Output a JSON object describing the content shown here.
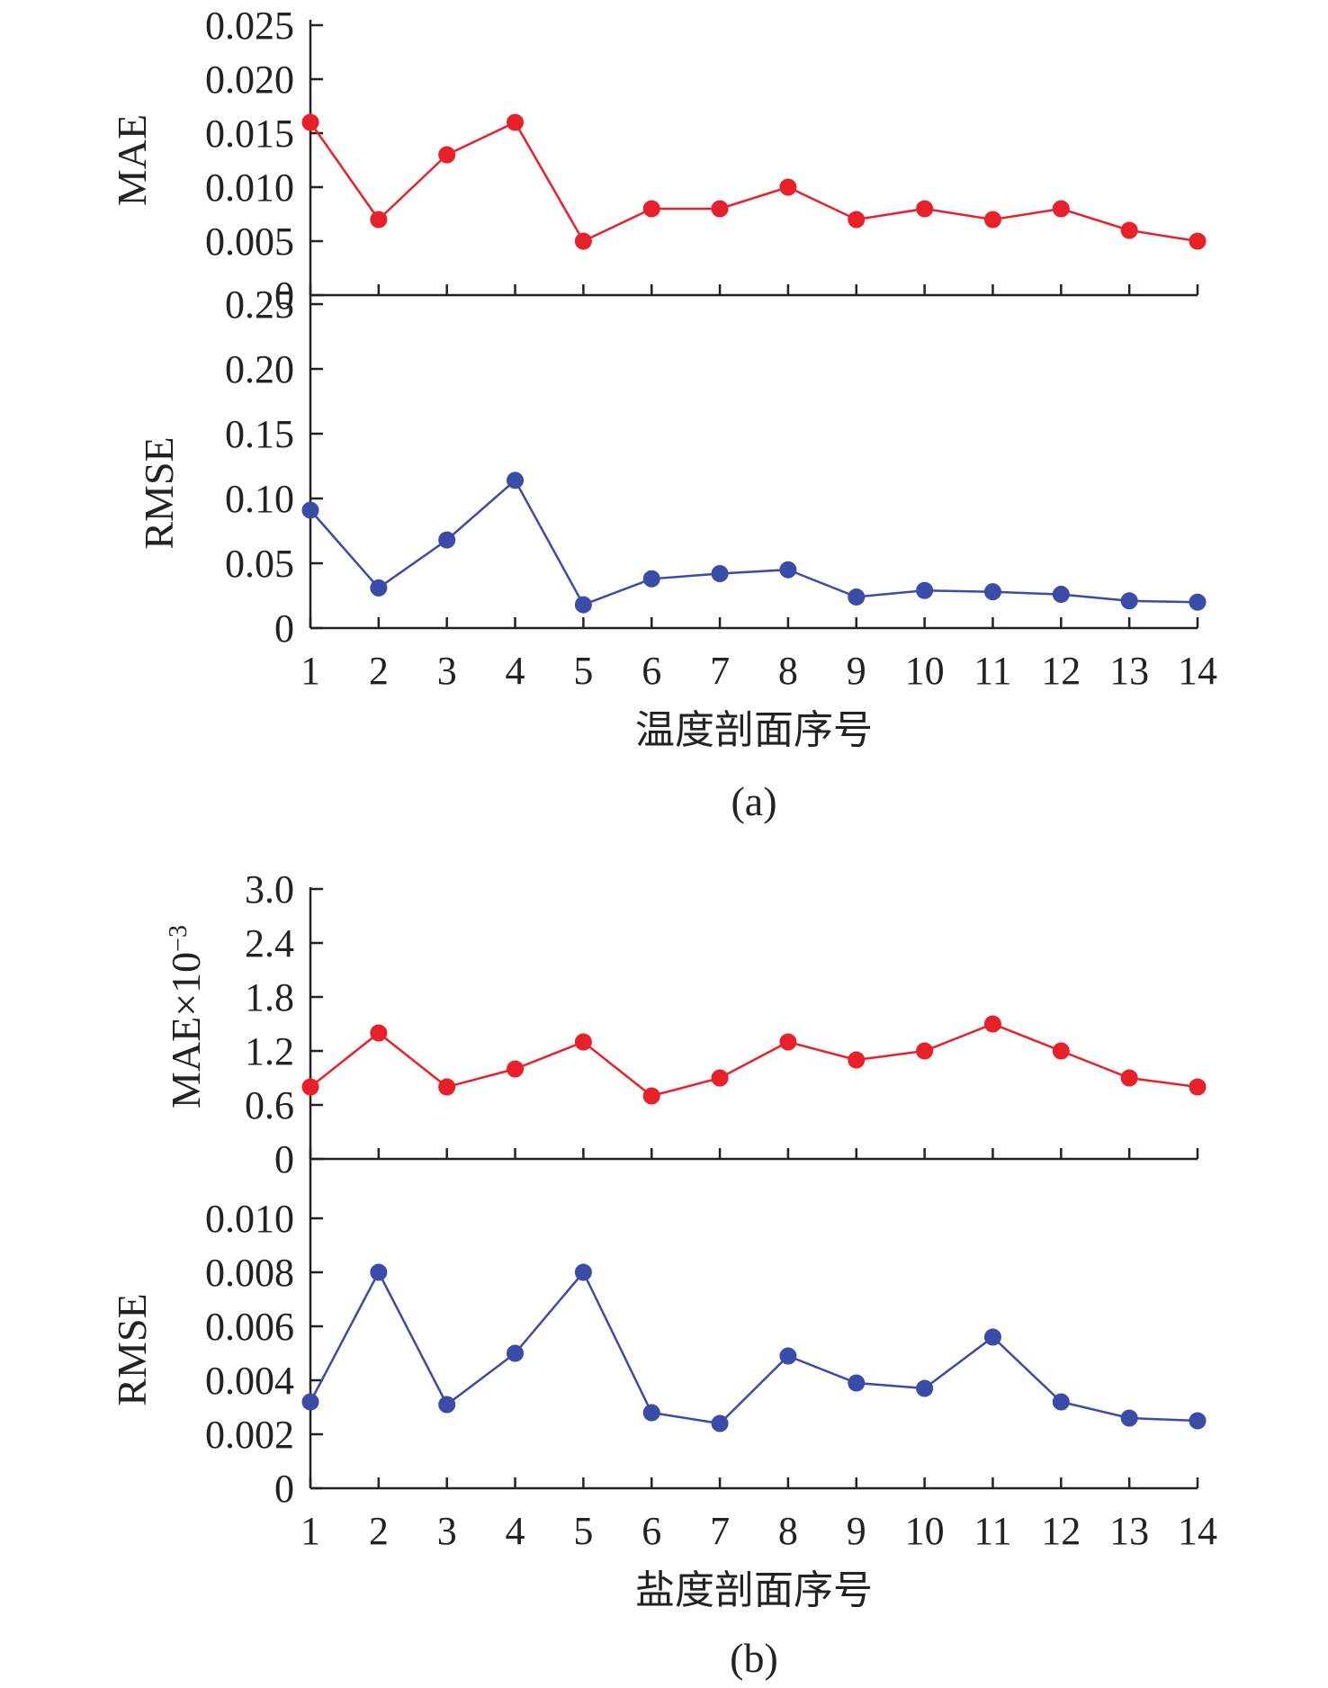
{
  "chart_data": [
    {
      "panel": "(a)",
      "type": "line",
      "xlabel": "温度剖面序号",
      "categories": [
        "1",
        "2",
        "3",
        "4",
        "5",
        "6",
        "7",
        "8",
        "9",
        "10",
        "11",
        "12",
        "13",
        "14"
      ],
      "subplots": [
        {
          "ylabel": "MAE",
          "ylim": [
            0,
            0.025
          ],
          "yticks": [
            "0",
            "0.005",
            "0.010",
            "0.015",
            "0.020",
            "0.025"
          ],
          "color": "#e8202a",
          "values": [
            0.016,
            0.007,
            0.013,
            0.016,
            0.005,
            0.008,
            0.008,
            0.01,
            0.007,
            0.008,
            0.007,
            0.008,
            0.006,
            0.005
          ]
        },
        {
          "ylabel": "RMSE",
          "ylim": [
            0,
            0.25
          ],
          "yticks": [
            "0",
            "0.05",
            "0.10",
            "0.15",
            "0.20",
            "0.25"
          ],
          "color": "#3a4ba8",
          "values": [
            0.091,
            0.031,
            0.068,
            0.114,
            0.018,
            0.038,
            0.042,
            0.045,
            0.024,
            0.029,
            0.028,
            0.026,
            0.021,
            0.02
          ]
        }
      ]
    },
    {
      "panel": "(b)",
      "type": "line",
      "xlabel": "盐度剖面序号",
      "categories": [
        "1",
        "2",
        "3",
        "4",
        "5",
        "6",
        "7",
        "8",
        "9",
        "10",
        "11",
        "12",
        "13",
        "14"
      ],
      "subplots": [
        {
          "ylabel": "MAE×10",
          "ylabel_exp": "−3",
          "ylim": [
            0,
            3.0
          ],
          "yticks": [
            "0",
            "0.6",
            "1.2",
            "1.8",
            "2.4",
            "3.0"
          ],
          "color": "#e8202a",
          "values": [
            0.8,
            1.4,
            0.8,
            1.0,
            1.3,
            0.7,
            0.9,
            1.3,
            1.1,
            1.2,
            1.5,
            1.2,
            0.9,
            0.8
          ]
        },
        {
          "ylabel": "RMSE",
          "ylim": [
            0,
            0.012
          ],
          "yticks": [
            "0",
            "0.002",
            "0.004",
            "0.006",
            "0.008",
            "0.010"
          ],
          "color": "#3a4ba8",
          "values": [
            0.0032,
            0.008,
            0.0031,
            0.005,
            0.008,
            0.0028,
            0.0024,
            0.0049,
            0.0039,
            0.0037,
            0.0056,
            0.0032,
            0.0026,
            0.0025
          ]
        }
      ]
    }
  ]
}
